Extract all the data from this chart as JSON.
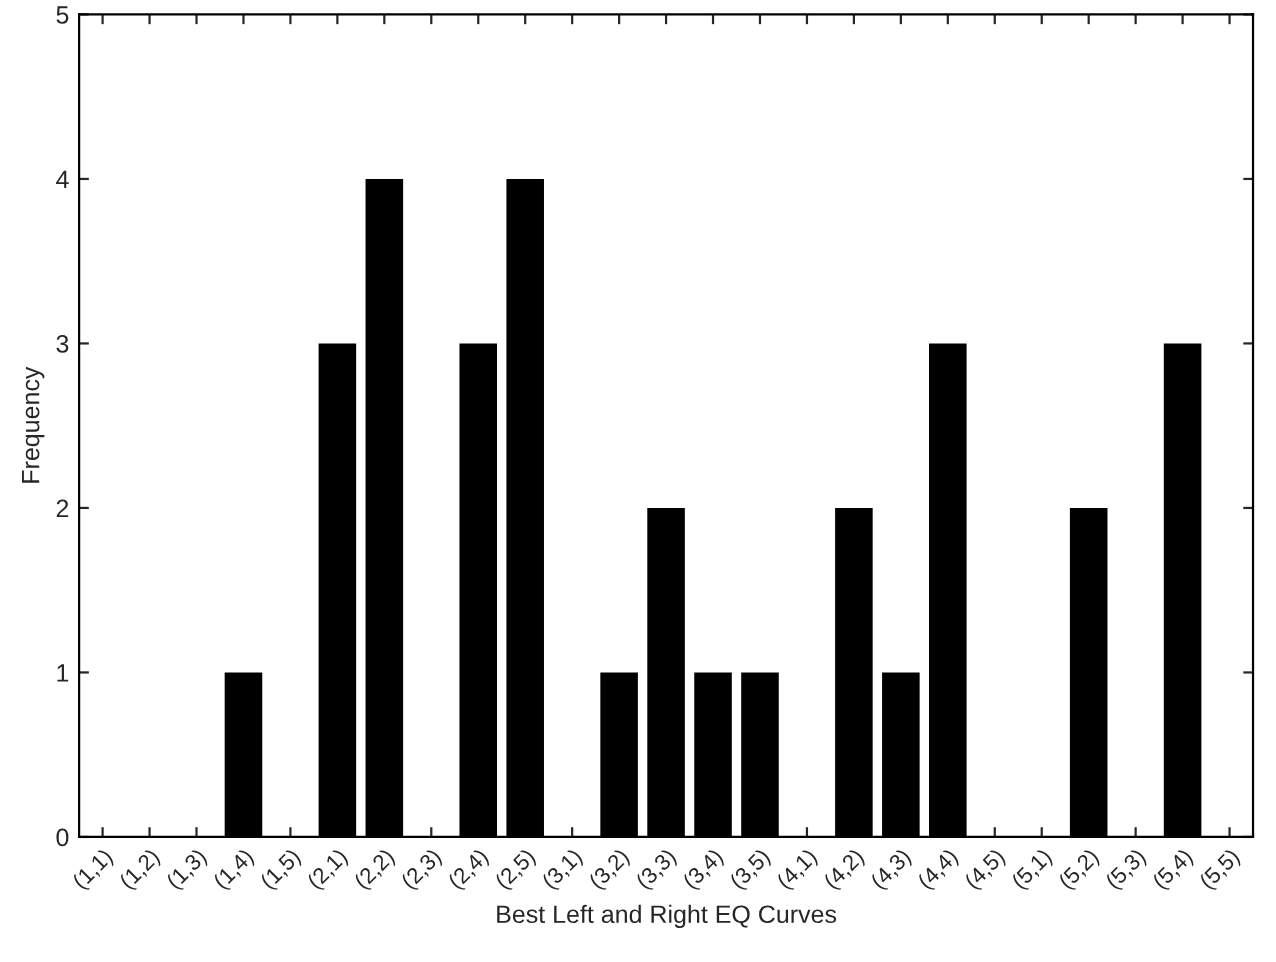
{
  "chart_data": {
    "type": "bar",
    "xlabel": "Best Left and Right EQ Curves",
    "ylabel": "Frequency",
    "categories": [
      "(1,1)",
      "(1,2)",
      "(1,3)",
      "(1,4)",
      "(1,5)",
      "(2,1)",
      "(2,2)",
      "(2,3)",
      "(2,4)",
      "(2,5)",
      "(3,1)",
      "(3,2)",
      "(3,3)",
      "(3,4)",
      "(3,5)",
      "(4,1)",
      "(4,2)",
      "(4,3)",
      "(4,4)",
      "(4,5)",
      "(5,1)",
      "(5,2)",
      "(5,3)",
      "(5,4)",
      "(5,5)"
    ],
    "values": [
      0,
      0,
      0,
      1,
      0,
      3,
      4,
      0,
      3,
      4,
      0,
      1,
      2,
      1,
      1,
      0,
      2,
      1,
      3,
      0,
      0,
      2,
      0,
      3,
      0
    ],
    "color": "#000000",
    "ylim": [
      0,
      5
    ],
    "yticks": [
      0,
      1,
      2,
      3,
      4,
      5
    ],
    "grid": false
  }
}
